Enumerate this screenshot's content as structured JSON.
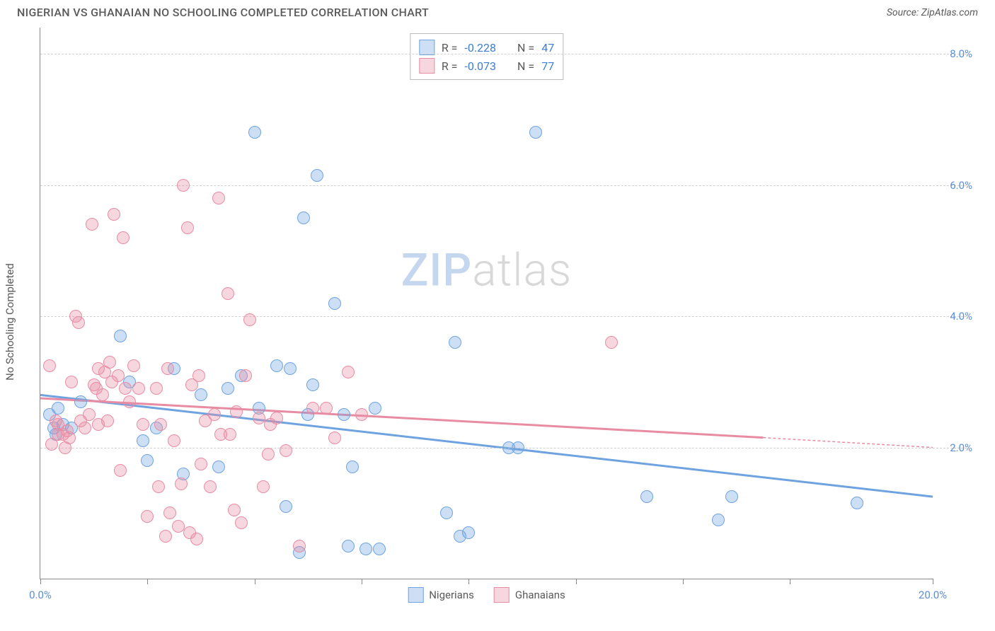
{
  "header": {
    "title": "NIGERIAN VS GHANAIAN NO SCHOOLING COMPLETED CORRELATION CHART",
    "source": "Source: ZipAtlas.com"
  },
  "chart": {
    "type": "scatter",
    "y_axis_label": "No Schooling Completed",
    "watermark_zip": "ZIP",
    "watermark_atlas": "atlas",
    "xlim": [
      0,
      20
    ],
    "ylim": [
      0,
      8.4
    ],
    "x_ticks": [
      0,
      2.4,
      4.8,
      7.2,
      9.6,
      12,
      14.4,
      16.8,
      20
    ],
    "x_tick_labels": {
      "0": "0.0%",
      "20": "20.0%"
    },
    "y_gridlines": [
      2.0,
      4.0,
      6.0,
      8.0
    ],
    "y_tick_labels": {
      "2.0": "2.0%",
      "4.0": "4.0%",
      "6.0": "6.0%",
      "8.0": "8.0%"
    },
    "background_color": "#ffffff",
    "grid_color": "#d0d0d0",
    "axis_color": "#888888",
    "marker_radius": 9,
    "marker_opacity": 0.55,
    "series": [
      {
        "name": "Nigerians",
        "color": "#6fa3e0",
        "fill": "rgba(111,163,224,0.35)",
        "r_value": "-0.228",
        "n_value": "47",
        "trend": {
          "x1": 0,
          "y1": 2.8,
          "x2": 20,
          "y2": 1.25
        },
        "points": [
          [
            0.2,
            2.5
          ],
          [
            0.3,
            2.3
          ],
          [
            0.35,
            2.2
          ],
          [
            0.4,
            2.6
          ],
          [
            0.5,
            2.35
          ],
          [
            0.7,
            2.3
          ],
          [
            0.9,
            2.7
          ],
          [
            1.8,
            3.7
          ],
          [
            2.0,
            3.0
          ],
          [
            2.3,
            2.1
          ],
          [
            2.4,
            1.8
          ],
          [
            2.6,
            2.3
          ],
          [
            3.0,
            3.2
          ],
          [
            3.2,
            1.6
          ],
          [
            3.6,
            2.8
          ],
          [
            4.0,
            1.7
          ],
          [
            4.2,
            2.9
          ],
          [
            4.5,
            3.1
          ],
          [
            4.8,
            6.8
          ],
          [
            4.9,
            2.6
          ],
          [
            5.3,
            3.25
          ],
          [
            5.5,
            1.1
          ],
          [
            5.6,
            3.2
          ],
          [
            5.8,
            0.4
          ],
          [
            5.9,
            5.5
          ],
          [
            6.0,
            2.5
          ],
          [
            6.1,
            2.95
          ],
          [
            6.2,
            6.15
          ],
          [
            6.6,
            4.2
          ],
          [
            6.8,
            2.5
          ],
          [
            6.9,
            0.5
          ],
          [
            7.0,
            1.7
          ],
          [
            7.3,
            0.45
          ],
          [
            7.5,
            2.6
          ],
          [
            7.6,
            0.45
          ],
          [
            9.1,
            1.0
          ],
          [
            9.3,
            3.6
          ],
          [
            9.4,
            0.65
          ],
          [
            9.6,
            0.7
          ],
          [
            10.5,
            2.0
          ],
          [
            10.7,
            2.0
          ],
          [
            11.1,
            6.8
          ],
          [
            13.6,
            1.25
          ],
          [
            15.2,
            0.9
          ],
          [
            15.5,
            1.25
          ],
          [
            18.3,
            1.15
          ]
        ]
      },
      {
        "name": "Ghanaians",
        "color": "#e88ca3",
        "fill": "rgba(232,140,163,0.35)",
        "r_value": "-0.073",
        "n_value": "77",
        "trend": {
          "x1": 0,
          "y1": 2.75,
          "x2": 16.2,
          "y2": 2.15,
          "dashed_to_x": 20,
          "dashed_to_y": 2.0
        },
        "points": [
          [
            0.2,
            3.25
          ],
          [
            0.25,
            2.05
          ],
          [
            0.35,
            2.4
          ],
          [
            0.4,
            2.2
          ],
          [
            0.4,
            2.35
          ],
          [
            0.5,
            2.2
          ],
          [
            0.55,
            2.0
          ],
          [
            0.6,
            2.25
          ],
          [
            0.65,
            2.15
          ],
          [
            0.7,
            3.0
          ],
          [
            0.8,
            4.0
          ],
          [
            0.85,
            3.9
          ],
          [
            0.9,
            2.4
          ],
          [
            1.0,
            2.3
          ],
          [
            1.1,
            2.5
          ],
          [
            1.15,
            5.4
          ],
          [
            1.2,
            2.95
          ],
          [
            1.25,
            2.9
          ],
          [
            1.3,
            3.2
          ],
          [
            1.3,
            2.35
          ],
          [
            1.4,
            2.8
          ],
          [
            1.45,
            3.15
          ],
          [
            1.5,
            2.4
          ],
          [
            1.55,
            3.3
          ],
          [
            1.6,
            3.0
          ],
          [
            1.65,
            5.55
          ],
          [
            1.75,
            3.1
          ],
          [
            1.8,
            1.65
          ],
          [
            1.85,
            5.2
          ],
          [
            1.9,
            2.9
          ],
          [
            2.0,
            2.7
          ],
          [
            2.1,
            3.25
          ],
          [
            2.2,
            2.9
          ],
          [
            2.3,
            2.35
          ],
          [
            2.4,
            0.95
          ],
          [
            2.6,
            2.9
          ],
          [
            2.65,
            1.4
          ],
          [
            2.7,
            2.35
          ],
          [
            2.8,
            0.65
          ],
          [
            2.85,
            3.2
          ],
          [
            2.9,
            1.0
          ],
          [
            3.0,
            2.1
          ],
          [
            3.1,
            0.8
          ],
          [
            3.15,
            1.45
          ],
          [
            3.2,
            6.0
          ],
          [
            3.3,
            5.35
          ],
          [
            3.35,
            0.7
          ],
          [
            3.4,
            2.95
          ],
          [
            3.5,
            0.6
          ],
          [
            3.55,
            3.1
          ],
          [
            3.6,
            1.75
          ],
          [
            3.7,
            2.4
          ],
          [
            3.8,
            1.4
          ],
          [
            3.9,
            2.5
          ],
          [
            4.0,
            5.8
          ],
          [
            4.05,
            2.2
          ],
          [
            4.2,
            4.35
          ],
          [
            4.25,
            2.2
          ],
          [
            4.35,
            1.05
          ],
          [
            4.4,
            2.55
          ],
          [
            4.5,
            0.85
          ],
          [
            4.6,
            3.1
          ],
          [
            4.7,
            3.95
          ],
          [
            4.9,
            2.45
          ],
          [
            5.0,
            1.4
          ],
          [
            5.1,
            1.9
          ],
          [
            5.15,
            2.35
          ],
          [
            5.3,
            2.45
          ],
          [
            5.5,
            1.95
          ],
          [
            5.8,
            0.5
          ],
          [
            6.1,
            2.6
          ],
          [
            6.4,
            2.6
          ],
          [
            6.6,
            2.15
          ],
          [
            6.9,
            3.15
          ],
          [
            7.2,
            2.5
          ],
          [
            12.8,
            3.6
          ]
        ]
      }
    ],
    "legend_top": {
      "rows": [
        {
          "swatch_fill": "rgba(111,163,224,0.35)",
          "swatch_border": "#6fa3e0",
          "r_label": "R =",
          "r_value": "-0.228",
          "n_label": "N =",
          "n_value": "47"
        },
        {
          "swatch_fill": "rgba(232,140,163,0.35)",
          "swatch_border": "#e88ca3",
          "r_label": "R =",
          "r_value": "-0.073",
          "n_label": "N =",
          "n_value": "77"
        }
      ]
    },
    "legend_bottom": {
      "items": [
        {
          "swatch_fill": "rgba(111,163,224,0.35)",
          "swatch_border": "#6fa3e0",
          "label": "Nigerians"
        },
        {
          "swatch_fill": "rgba(232,140,163,0.35)",
          "swatch_border": "#e88ca3",
          "label": "Ghanaians"
        }
      ]
    }
  }
}
